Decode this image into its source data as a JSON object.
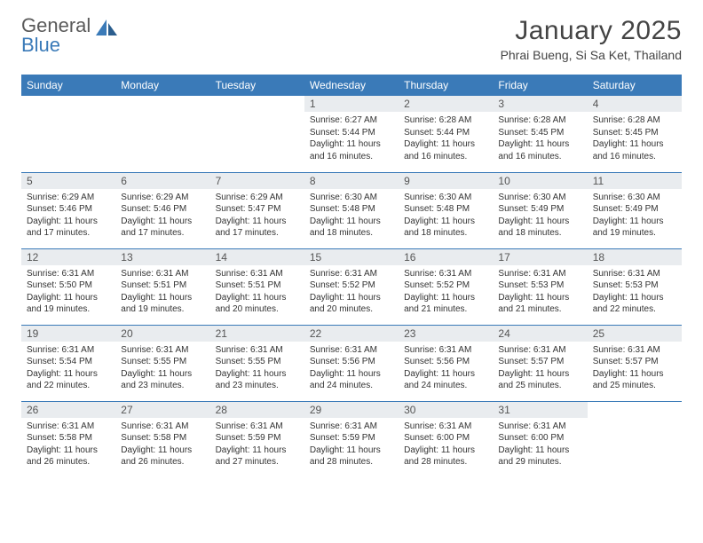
{
  "brand": {
    "name1": "General",
    "name2": "Blue"
  },
  "title": "January 2025",
  "location": "Phrai Bueng, Si Sa Ket, Thailand",
  "colors": {
    "header_bg": "#3a7ab8",
    "row_border": "#3a7ab8",
    "daynum_bg": "#e9ecef",
    "text": "#333333",
    "page_bg": "#ffffff"
  },
  "weekdays": [
    "Sunday",
    "Monday",
    "Tuesday",
    "Wednesday",
    "Thursday",
    "Friday",
    "Saturday"
  ],
  "weeks": [
    [
      {
        "n": "",
        "sr": "",
        "ss": "",
        "dl": ""
      },
      {
        "n": "",
        "sr": "",
        "ss": "",
        "dl": ""
      },
      {
        "n": "",
        "sr": "",
        "ss": "",
        "dl": ""
      },
      {
        "n": "1",
        "sr": "6:27 AM",
        "ss": "5:44 PM",
        "dl": "11 hours and 16 minutes."
      },
      {
        "n": "2",
        "sr": "6:28 AM",
        "ss": "5:44 PM",
        "dl": "11 hours and 16 minutes."
      },
      {
        "n": "3",
        "sr": "6:28 AM",
        "ss": "5:45 PM",
        "dl": "11 hours and 16 minutes."
      },
      {
        "n": "4",
        "sr": "6:28 AM",
        "ss": "5:45 PM",
        "dl": "11 hours and 16 minutes."
      }
    ],
    [
      {
        "n": "5",
        "sr": "6:29 AM",
        "ss": "5:46 PM",
        "dl": "11 hours and 17 minutes."
      },
      {
        "n": "6",
        "sr": "6:29 AM",
        "ss": "5:46 PM",
        "dl": "11 hours and 17 minutes."
      },
      {
        "n": "7",
        "sr": "6:29 AM",
        "ss": "5:47 PM",
        "dl": "11 hours and 17 minutes."
      },
      {
        "n": "8",
        "sr": "6:30 AM",
        "ss": "5:48 PM",
        "dl": "11 hours and 18 minutes."
      },
      {
        "n": "9",
        "sr": "6:30 AM",
        "ss": "5:48 PM",
        "dl": "11 hours and 18 minutes."
      },
      {
        "n": "10",
        "sr": "6:30 AM",
        "ss": "5:49 PM",
        "dl": "11 hours and 18 minutes."
      },
      {
        "n": "11",
        "sr": "6:30 AM",
        "ss": "5:49 PM",
        "dl": "11 hours and 19 minutes."
      }
    ],
    [
      {
        "n": "12",
        "sr": "6:31 AM",
        "ss": "5:50 PM",
        "dl": "11 hours and 19 minutes."
      },
      {
        "n": "13",
        "sr": "6:31 AM",
        "ss": "5:51 PM",
        "dl": "11 hours and 19 minutes."
      },
      {
        "n": "14",
        "sr": "6:31 AM",
        "ss": "5:51 PM",
        "dl": "11 hours and 20 minutes."
      },
      {
        "n": "15",
        "sr": "6:31 AM",
        "ss": "5:52 PM",
        "dl": "11 hours and 20 minutes."
      },
      {
        "n": "16",
        "sr": "6:31 AM",
        "ss": "5:52 PM",
        "dl": "11 hours and 21 minutes."
      },
      {
        "n": "17",
        "sr": "6:31 AM",
        "ss": "5:53 PM",
        "dl": "11 hours and 21 minutes."
      },
      {
        "n": "18",
        "sr": "6:31 AM",
        "ss": "5:53 PM",
        "dl": "11 hours and 22 minutes."
      }
    ],
    [
      {
        "n": "19",
        "sr": "6:31 AM",
        "ss": "5:54 PM",
        "dl": "11 hours and 22 minutes."
      },
      {
        "n": "20",
        "sr": "6:31 AM",
        "ss": "5:55 PM",
        "dl": "11 hours and 23 minutes."
      },
      {
        "n": "21",
        "sr": "6:31 AM",
        "ss": "5:55 PM",
        "dl": "11 hours and 23 minutes."
      },
      {
        "n": "22",
        "sr": "6:31 AM",
        "ss": "5:56 PM",
        "dl": "11 hours and 24 minutes."
      },
      {
        "n": "23",
        "sr": "6:31 AM",
        "ss": "5:56 PM",
        "dl": "11 hours and 24 minutes."
      },
      {
        "n": "24",
        "sr": "6:31 AM",
        "ss": "5:57 PM",
        "dl": "11 hours and 25 minutes."
      },
      {
        "n": "25",
        "sr": "6:31 AM",
        "ss": "5:57 PM",
        "dl": "11 hours and 25 minutes."
      }
    ],
    [
      {
        "n": "26",
        "sr": "6:31 AM",
        "ss": "5:58 PM",
        "dl": "11 hours and 26 minutes."
      },
      {
        "n": "27",
        "sr": "6:31 AM",
        "ss": "5:58 PM",
        "dl": "11 hours and 26 minutes."
      },
      {
        "n": "28",
        "sr": "6:31 AM",
        "ss": "5:59 PM",
        "dl": "11 hours and 27 minutes."
      },
      {
        "n": "29",
        "sr": "6:31 AM",
        "ss": "5:59 PM",
        "dl": "11 hours and 28 minutes."
      },
      {
        "n": "30",
        "sr": "6:31 AM",
        "ss": "6:00 PM",
        "dl": "11 hours and 28 minutes."
      },
      {
        "n": "31",
        "sr": "6:31 AM",
        "ss": "6:00 PM",
        "dl": "11 hours and 29 minutes."
      },
      {
        "n": "",
        "sr": "",
        "ss": "",
        "dl": ""
      }
    ]
  ]
}
